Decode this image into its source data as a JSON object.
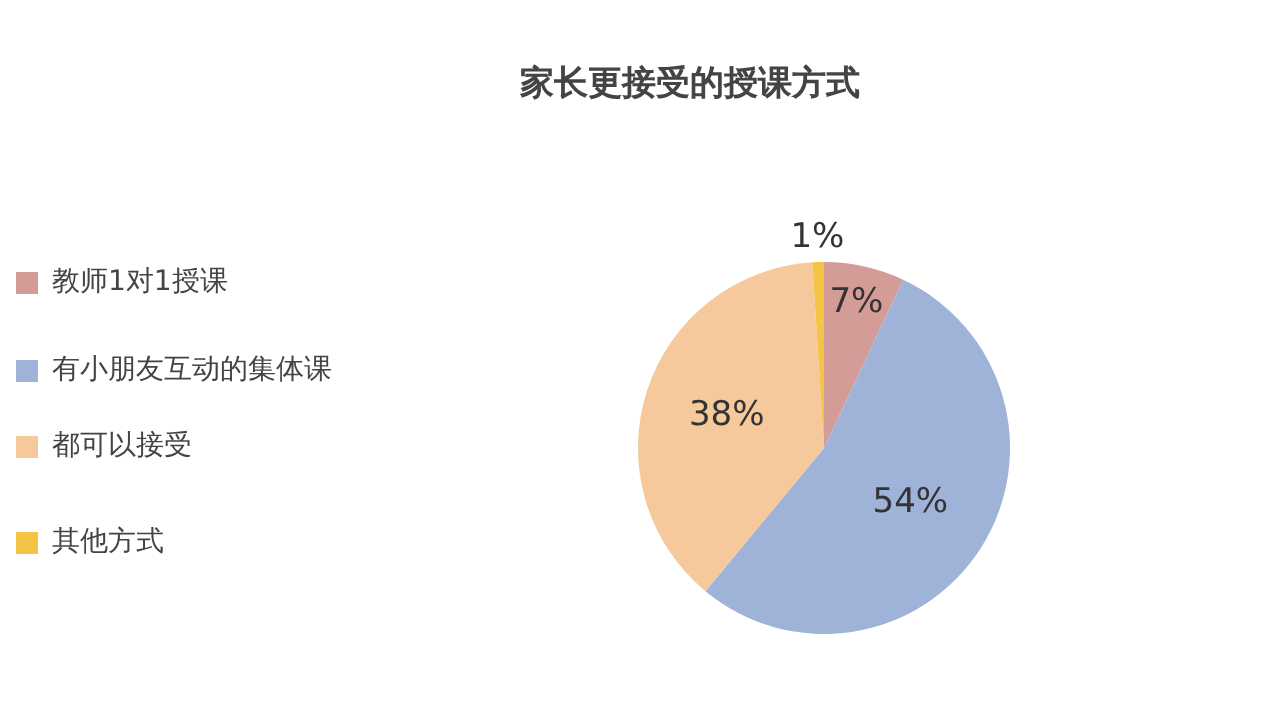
{
  "chart_data": {
    "type": "pie",
    "title": "家长更接受的授课方式",
    "categories": [
      "教师1对1授课",
      "有小朋友互动的集体课",
      "都可以接受",
      "其他方式"
    ],
    "values": [
      7,
      54,
      38,
      1
    ],
    "value_labels": [
      "7%",
      "54%",
      "38%",
      "1%"
    ],
    "colors": [
      "#d49c97",
      "#9fb3d9",
      "#f5c99c",
      "#f4c444"
    ],
    "legend": "left"
  }
}
